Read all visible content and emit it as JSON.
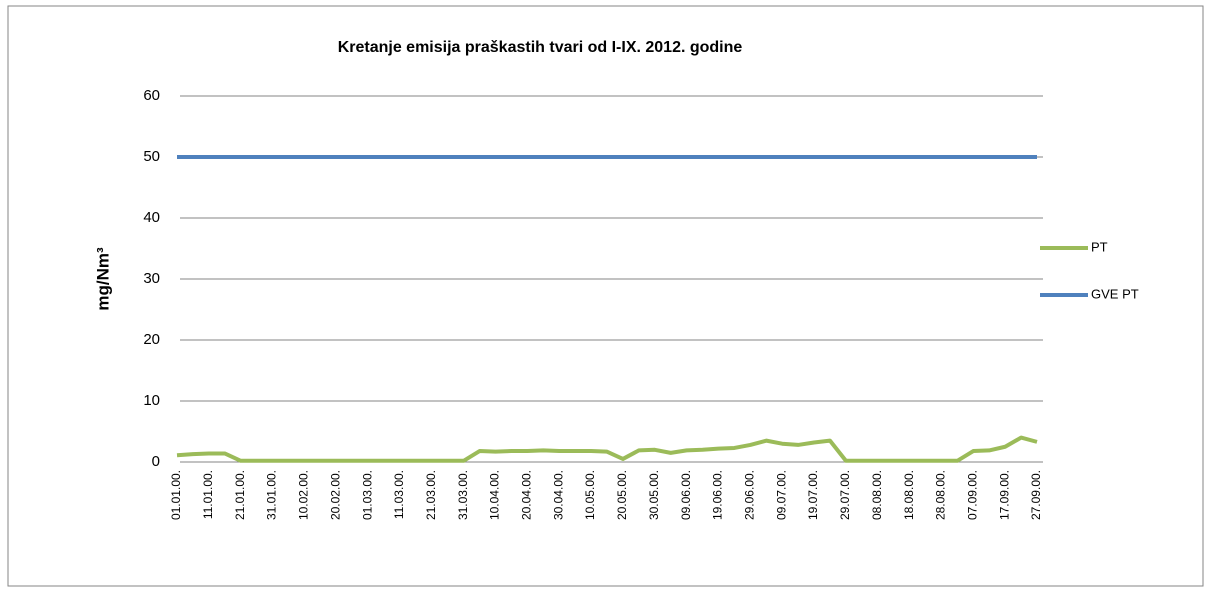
{
  "chart_data": {
    "type": "line",
    "title": "Kretanje emisija praškastih tvari od I-IX. 2012.  godine",
    "ylabel": "mg/Nm³",
    "categories": [
      "01.01.00.",
      null,
      "11.01.00.",
      null,
      "21.01.00.",
      null,
      "31.01.00.",
      null,
      "10.02.00.",
      null,
      "20.02.00.",
      null,
      "01.03.00.",
      null,
      "11.03.00.",
      null,
      "21.03.00.",
      null,
      "31.03.00.",
      null,
      "10.04.00.",
      null,
      "20.04.00.",
      null,
      "30.04.00.",
      null,
      "10.05.00.",
      null,
      "20.05.00.",
      null,
      "30.05.00.",
      null,
      "09.06.00.",
      null,
      "19.06.00.",
      null,
      "29.06.00.",
      null,
      "09.07.00.",
      null,
      "19.07.00.",
      null,
      "29.07.00.",
      null,
      "08.08.00.",
      null,
      "18.08.00.",
      null,
      "28.08.00.",
      null,
      "07.09.00.",
      null,
      "17.09.00.",
      null,
      "27.09.00."
    ],
    "series": [
      {
        "name": "PT",
        "color": "#9bbb59",
        "values": [
          1.1,
          1.3,
          1.4,
          1.4,
          0.2,
          0.2,
          0.2,
          0.2,
          0.2,
          0.2,
          0.2,
          0.2,
          0.2,
          0.2,
          0.2,
          0.2,
          0.2,
          0.2,
          0.2,
          1.8,
          1.7,
          1.8,
          1.8,
          1.9,
          1.8,
          1.8,
          1.8,
          1.7,
          0.5,
          1.9,
          2.0,
          1.5,
          1.9,
          2.0,
          2.2,
          2.3,
          2.8,
          3.5,
          3.0,
          2.8,
          3.2,
          3.5,
          0.2,
          0.2,
          0.2,
          0.2,
          0.2,
          0.2,
          0.2,
          0.2,
          1.8,
          1.9,
          2.5,
          4.0,
          3.3
        ]
      },
      {
        "name": "GVE PT",
        "color": "#4f81bd",
        "values": [
          50,
          50,
          50,
          50,
          50,
          50,
          50,
          50,
          50,
          50,
          50,
          50,
          50,
          50,
          50,
          50,
          50,
          50,
          50,
          50,
          50,
          50,
          50,
          50,
          50,
          50,
          50,
          50,
          50,
          50,
          50,
          50,
          50,
          50,
          50,
          50,
          50,
          50,
          50,
          50,
          50,
          50,
          50,
          50,
          50,
          50,
          50,
          50,
          50,
          50,
          50,
          50,
          50,
          50,
          50
        ]
      }
    ],
    "ylim": [
      0,
      60
    ],
    "yticks": [
      0,
      10,
      20,
      30,
      40,
      50,
      60
    ],
    "grid": true,
    "legend": "right"
  }
}
